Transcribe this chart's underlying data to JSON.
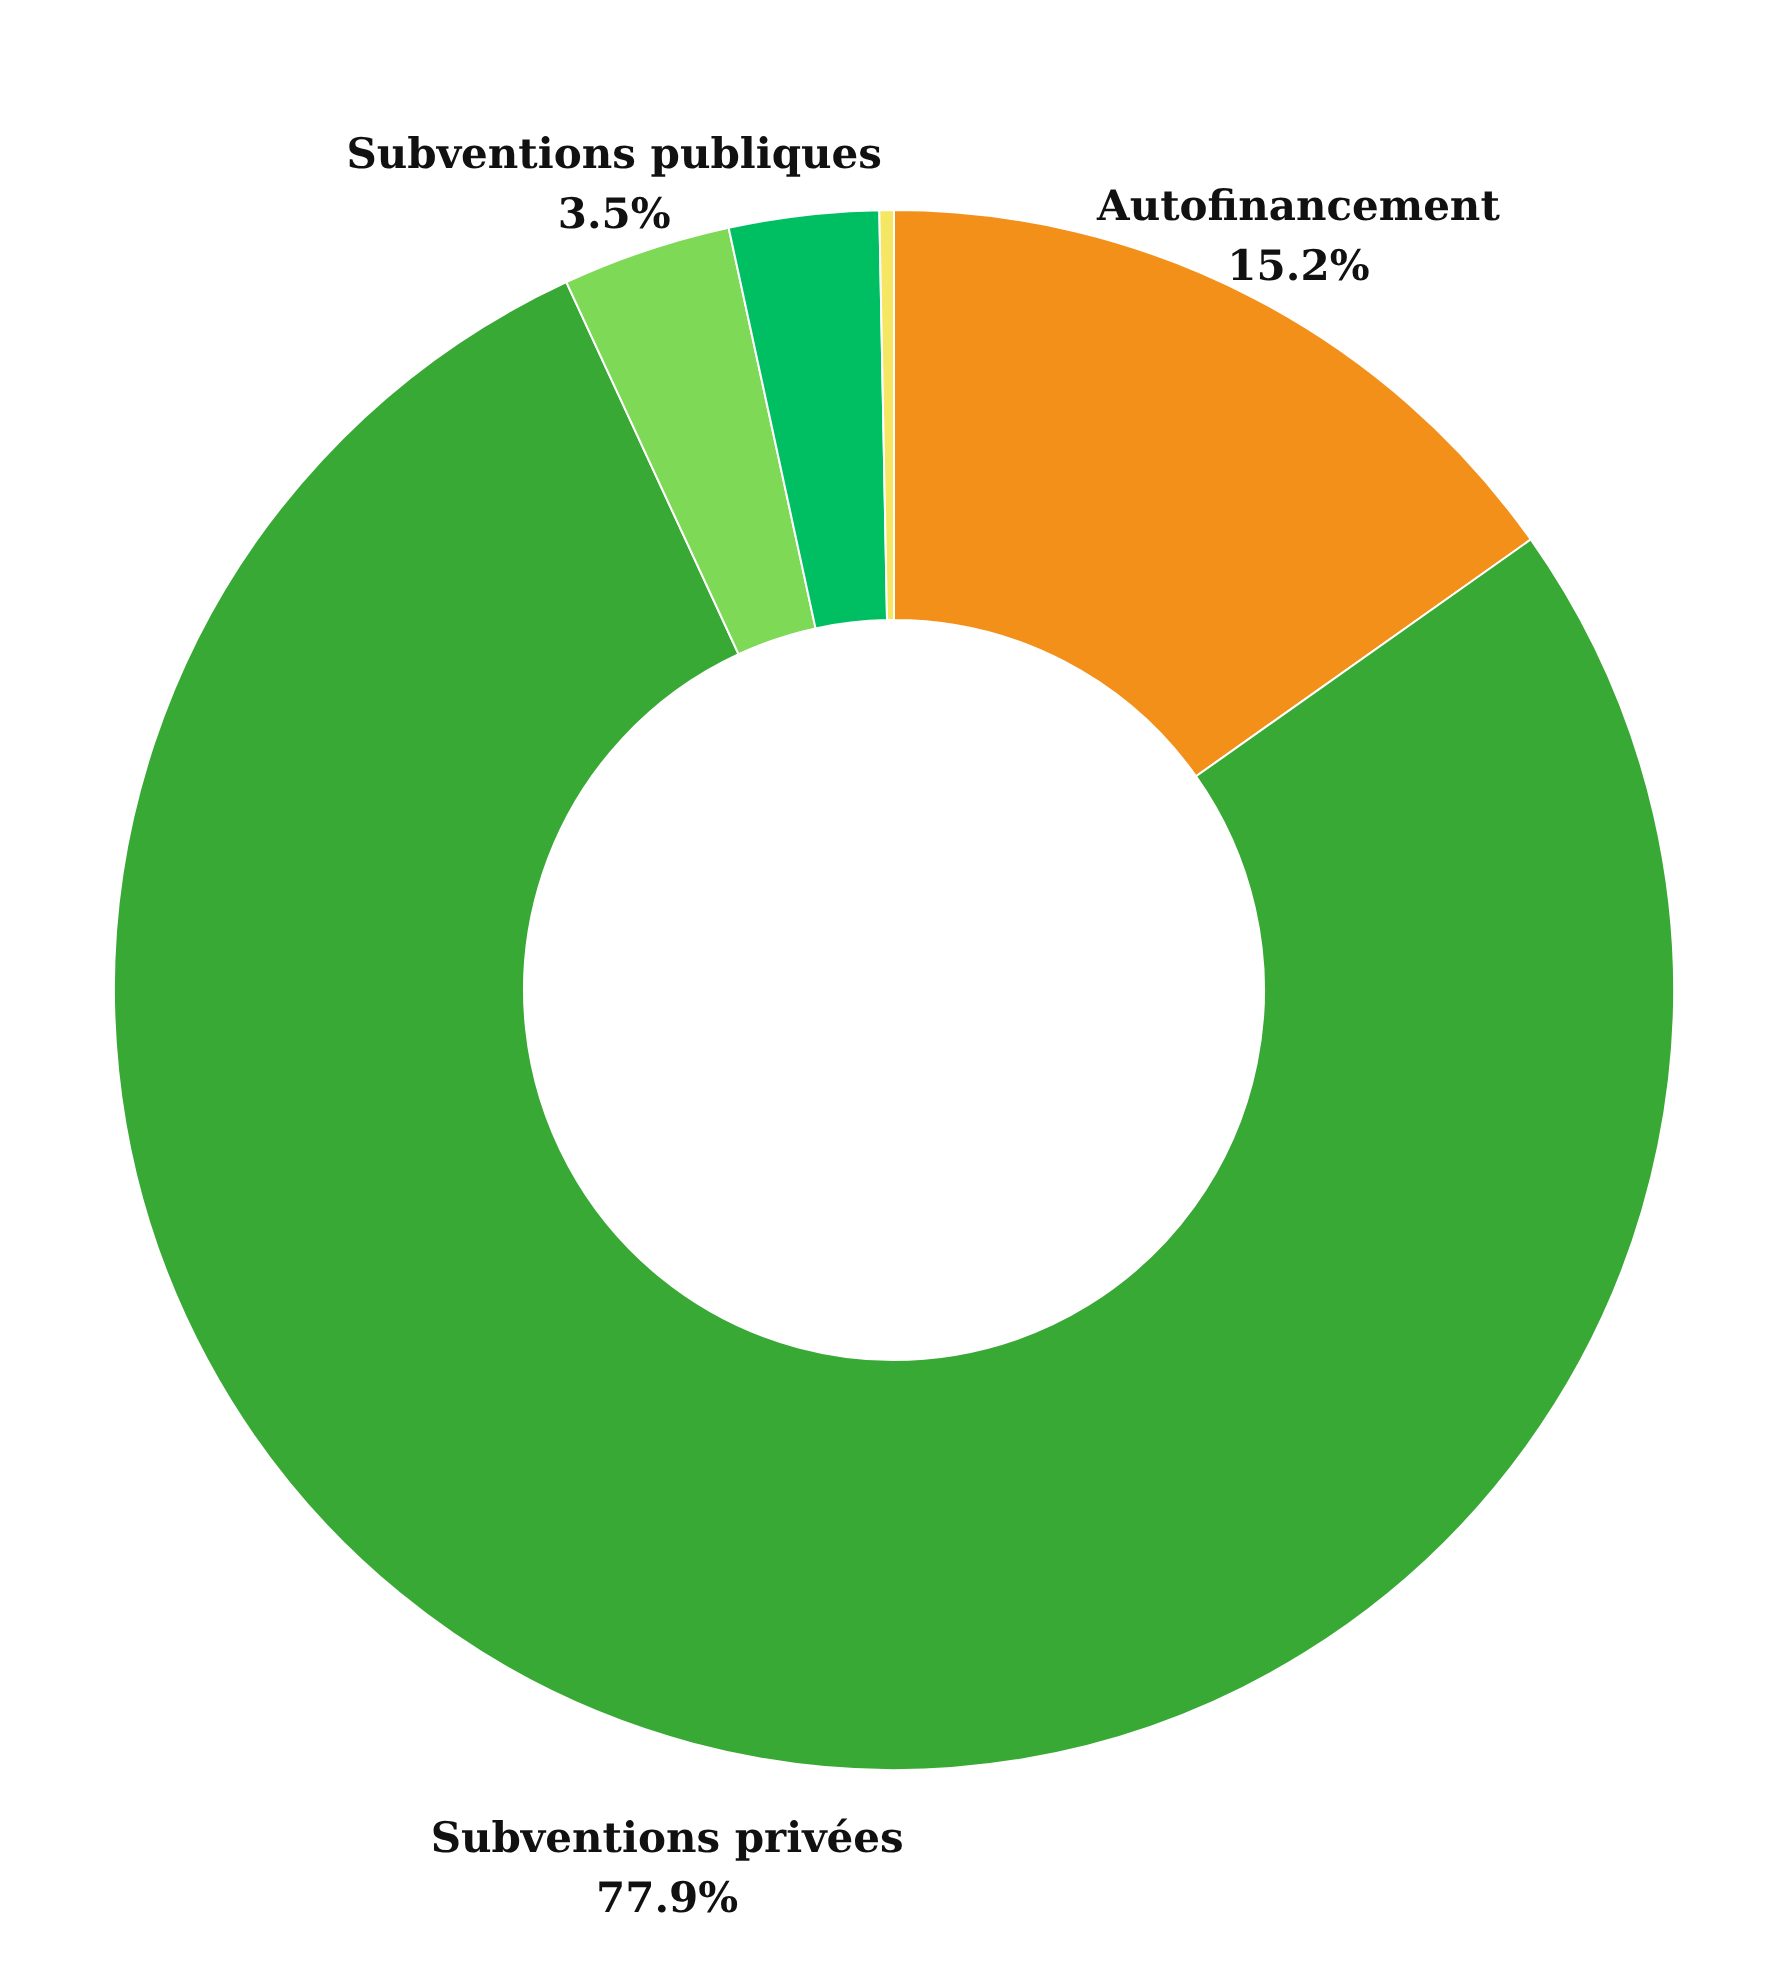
{
  "chart_data": {
    "type": "donut",
    "categories": [
      "Autofinancement",
      "Subventions privées",
      "Subventions publiques",
      null,
      null
    ],
    "values": [
      15.2,
      77.9,
      3.5,
      3.1,
      0.3
    ],
    "colors": [
      "#f39019",
      "#38a935",
      "#7ed957",
      "#00bf63",
      "#f5e663"
    ],
    "value_labels": [
      "15.2%",
      "77.9%",
      "3.5%",
      null,
      null
    ]
  }
}
